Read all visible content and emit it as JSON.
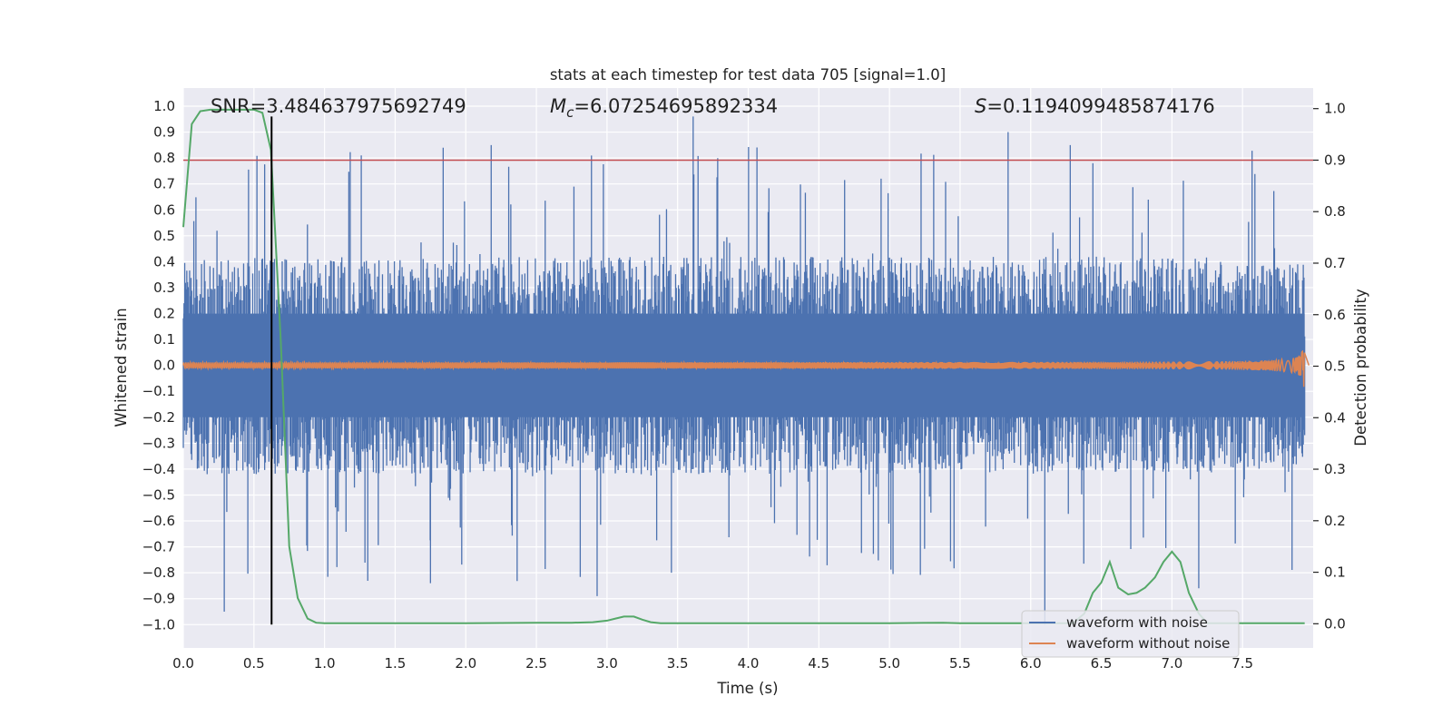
{
  "chart_data": {
    "type": "line",
    "title": "stats at each timestep for test data 705 [signal=1.0]",
    "xlabel": "Time (s)",
    "ylabel": "Whitened strain",
    "y2label": "Detection probability",
    "xlim": [
      0,
      8
    ],
    "ylim": [
      -1.09,
      1.07
    ],
    "y2lim": [
      -0.047,
      1.04
    ],
    "xticks": [
      "0.0",
      "0.5",
      "1.0",
      "1.5",
      "2.0",
      "2.5",
      "3.0",
      "3.5",
      "4.0",
      "4.5",
      "5.0",
      "5.5",
      "6.0",
      "6.5",
      "7.0",
      "7.5"
    ],
    "yticks": [
      "1.0",
      "0.9",
      "0.8",
      "0.7",
      "0.6",
      "0.5",
      "0.4",
      "0.3",
      "0.2",
      "0.1",
      "0.0",
      "−0.1",
      "−0.2",
      "−0.3",
      "−0.4",
      "−0.5",
      "−0.6",
      "−0.7",
      "−0.8",
      "−0.9",
      "−1.0"
    ],
    "y2ticks": [
      "1.0",
      "0.9",
      "0.8",
      "0.7",
      "0.6",
      "0.5",
      "0.4",
      "0.3",
      "0.2",
      "0.1",
      "0.0"
    ],
    "annotations": {
      "snr": "SNR=3.484637975692749",
      "mc_symbol": "M",
      "mc_sub": "c",
      "mc_value": "=6.07254695892334",
      "s_symbol": "S",
      "s_value": "=0.1194099485874176"
    },
    "threshold": 0.9,
    "marker_x": 0.625,
    "legend_position": "lower-right",
    "series": [
      {
        "name": "waveform with noise",
        "axis": "left",
        "color": "#4c72b0",
        "noise_envelope": {
          "typical_upper": 0.42,
          "typical_lower": -0.42,
          "max_spike": 0.96,
          "min_spike": -0.95
        }
      },
      {
        "name": "waveform without noise",
        "axis": "left",
        "color": "#dd8452",
        "chirp": {
          "start_amplitude": 0.01,
          "peak_amplitude": 0.11,
          "merger_time": 7.94
        }
      },
      {
        "name": "detection probability",
        "axis": "right",
        "color": "#55a868",
        "x": [
          0.0,
          0.06,
          0.12,
          0.19,
          0.25,
          0.31,
          0.38,
          0.44,
          0.5,
          0.56,
          0.62,
          0.69,
          0.75,
          0.81,
          0.88,
          0.94,
          1.0,
          1.25,
          1.5,
          2.0,
          2.5,
          2.75,
          2.9,
          3.0,
          3.06,
          3.12,
          3.19,
          3.25,
          3.31,
          3.38,
          3.5,
          4.0,
          5.0,
          5.38,
          5.5,
          6.0,
          6.3,
          6.38,
          6.44,
          6.5,
          6.56,
          6.62,
          6.69,
          6.75,
          6.81,
          6.88,
          6.94,
          7.0,
          7.06,
          7.12,
          7.19,
          7.25,
          7.5,
          7.94
        ],
        "y": [
          0.77,
          0.97,
          0.995,
          0.998,
          0.998,
          0.998,
          0.998,
          0.998,
          0.998,
          0.992,
          0.92,
          0.55,
          0.15,
          0.05,
          0.01,
          0.002,
          0.001,
          0.001,
          0.001,
          0.001,
          0.002,
          0.002,
          0.003,
          0.006,
          0.01,
          0.014,
          0.014,
          0.008,
          0.003,
          0.001,
          0.001,
          0.001,
          0.001,
          0.002,
          0.001,
          0.001,
          0.001,
          0.02,
          0.06,
          0.08,
          0.12,
          0.07,
          0.057,
          0.06,
          0.07,
          0.09,
          0.12,
          0.14,
          0.12,
          0.06,
          0.02,
          0.001,
          0.001,
          0.001
        ]
      }
    ]
  }
}
